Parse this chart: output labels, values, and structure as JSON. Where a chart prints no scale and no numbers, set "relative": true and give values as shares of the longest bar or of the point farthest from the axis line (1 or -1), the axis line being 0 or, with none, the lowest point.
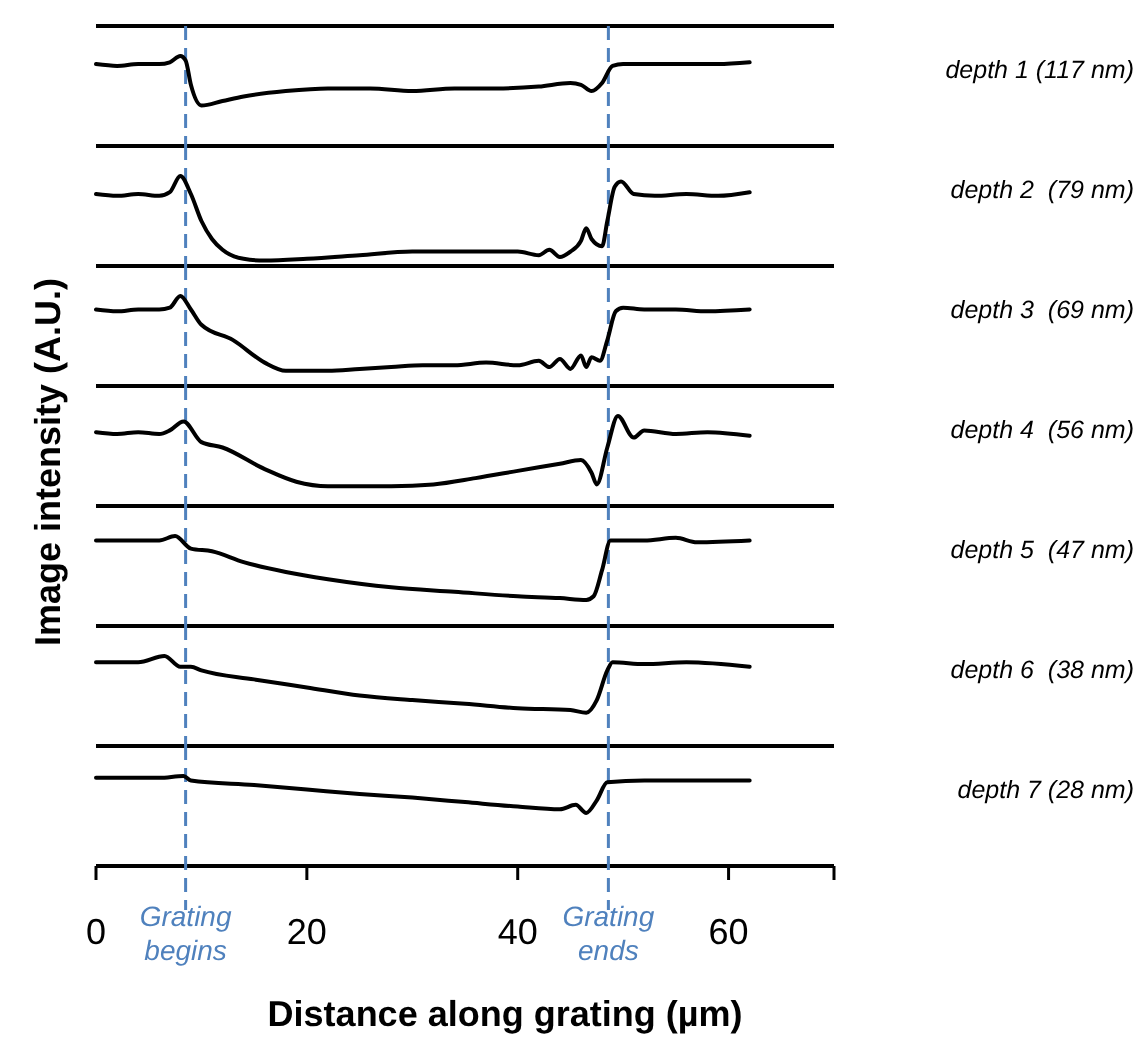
{
  "chart_data": [
    {
      "type": "line",
      "relative": true,
      "ylabel": "Image intensity (A.U.)",
      "xlim": [
        0,
        70
      ],
      "tick_labels": false,
      "series": [
        {
          "name": "depth 1 (117 nm)",
          "color": "#000000",
          "x": [
            0,
            2,
            4,
            6,
            7,
            8,
            8.5,
            9,
            10,
            12,
            14,
            18,
            22,
            26,
            30,
            34,
            38,
            42,
            45,
            46,
            47,
            48,
            49,
            50,
            53,
            56,
            59,
            62
          ],
          "values": [
            0.91,
            0.89,
            0.91,
            0.91,
            0.93,
            1,
            0.95,
            0.68,
            0.45,
            0.5,
            0.55,
            0.61,
            0.64,
            0.64,
            0.61,
            0.64,
            0.64,
            0.66,
            0.7,
            0.68,
            0.61,
            0.7,
            0.89,
            0.91,
            0.91,
            0.91,
            0.91,
            0.93
          ]
        }
      ],
      "ref_lines": [
        {
          "axis": "x",
          "value": 8.5,
          "color": "#4f81bd",
          "line_style": "dashed"
        },
        {
          "axis": "x",
          "value": 48.6,
          "color": "#4f81bd",
          "line_style": "dashed"
        }
      ]
    },
    {
      "type": "line",
      "relative": true,
      "xlim": [
        0,
        70
      ],
      "tick_labels": false,
      "series": [
        {
          "name": "depth 2  (79 nm)",
          "color": "#000000",
          "x": [
            0,
            2,
            4,
            6,
            7,
            8,
            9,
            10,
            11,
            12,
            14,
            16,
            20,
            25,
            30,
            35,
            40,
            42,
            43,
            44,
            45,
            46,
            46.5,
            47,
            48,
            48.5,
            49.2,
            49.8,
            51,
            53,
            56,
            59,
            62
          ],
          "values": [
            0.8,
            0.78,
            0.8,
            0.78,
            0.82,
            1,
            0.8,
            0.5,
            0.3,
            0.18,
            0.08,
            0.06,
            0.08,
            0.12,
            0.16,
            0.16,
            0.16,
            0.12,
            0.18,
            0.1,
            0.16,
            0.28,
            0.42,
            0.3,
            0.22,
            0.5,
            0.88,
            0.94,
            0.8,
            0.78,
            0.8,
            0.78,
            0.82
          ]
        }
      ],
      "ref_lines": [
        {
          "axis": "x",
          "value": 8.5,
          "color": "#4f81bd",
          "line_style": "dashed"
        },
        {
          "axis": "x",
          "value": 48.6,
          "color": "#4f81bd",
          "line_style": "dashed"
        }
      ]
    },
    {
      "type": "line",
      "relative": true,
      "xlim": [
        0,
        70
      ],
      "tick_labels": false,
      "series": [
        {
          "name": "depth 3  (69 nm)",
          "color": "#000000",
          "x": [
            0,
            2,
            4,
            6,
            7,
            8,
            9,
            10,
            13,
            16,
            18,
            22,
            25,
            28,
            31,
            34,
            37,
            40,
            42,
            43,
            44,
            45,
            46,
            46.5,
            47,
            47.8,
            48.5,
            49.3,
            50,
            52,
            55,
            58,
            62
          ],
          "values": [
            0.85,
            0.83,
            0.85,
            0.85,
            0.87,
            1,
            0.85,
            0.68,
            0.51,
            0.26,
            0.17,
            0.17,
            0.19,
            0.21,
            0.23,
            0.23,
            0.26,
            0.23,
            0.28,
            0.21,
            0.3,
            0.19,
            0.34,
            0.21,
            0.32,
            0.28,
            0.51,
            0.83,
            0.87,
            0.85,
            0.85,
            0.83,
            0.85
          ]
        }
      ],
      "ref_lines": [
        {
          "axis": "x",
          "value": 8.5,
          "color": "#4f81bd",
          "line_style": "dashed"
        },
        {
          "axis": "x",
          "value": 48.6,
          "color": "#4f81bd",
          "line_style": "dashed"
        }
      ]
    },
    {
      "type": "line",
      "relative": true,
      "xlim": [
        0,
        70
      ],
      "tick_labels": false,
      "series": [
        {
          "name": "depth 4  (56 nm)",
          "color": "#000000",
          "x": [
            0,
            2,
            4,
            6,
            7,
            8.3,
            10,
            12,
            16,
            19,
            22,
            28,
            32,
            36,
            40,
            44,
            46,
            47,
            47.5,
            48.5,
            49.5,
            51,
            52,
            55,
            58,
            62
          ],
          "values": [
            0.82,
            0.8,
            0.82,
            0.8,
            0.84,
            0.94,
            0.71,
            0.65,
            0.41,
            0.27,
            0.22,
            0.22,
            0.24,
            0.31,
            0.39,
            0.47,
            0.51,
            0.37,
            0.24,
            0.65,
            1,
            0.76,
            0.84,
            0.8,
            0.82,
            0.78
          ]
        }
      ],
      "ref_lines": [
        {
          "axis": "x",
          "value": 8.5,
          "color": "#4f81bd",
          "line_style": "dashed"
        },
        {
          "axis": "x",
          "value": 48.6,
          "color": "#4f81bd",
          "line_style": "dashed"
        }
      ]
    },
    {
      "type": "line",
      "relative": true,
      "xlim": [
        0,
        70
      ],
      "tick_labels": false,
      "series": [
        {
          "name": "depth 5  (47 nm)",
          "color": "#000000",
          "x": [
            0,
            2,
            4,
            6,
            7.5,
            9,
            11,
            14,
            18,
            22,
            28,
            34,
            40,
            44,
            46.5,
            47.2,
            48,
            48.8,
            52,
            55,
            57,
            62
          ],
          "values": [
            0.95,
            0.95,
            0.95,
            0.95,
            1,
            0.86,
            0.83,
            0.71,
            0.6,
            0.52,
            0.43,
            0.38,
            0.33,
            0.31,
            0.29,
            0.33,
            0.62,
            0.95,
            0.95,
            0.98,
            0.93,
            0.95
          ]
        }
      ],
      "ref_lines": [
        {
          "axis": "x",
          "value": 8.5,
          "color": "#4f81bd",
          "line_style": "dashed"
        },
        {
          "axis": "x",
          "value": 48.6,
          "color": "#4f81bd",
          "line_style": "dashed"
        }
      ]
    },
    {
      "type": "line",
      "relative": true,
      "xlim": [
        0,
        70
      ],
      "tick_labels": false,
      "series": [
        {
          "name": "depth 6  (38 nm)",
          "color": "#000000",
          "x": [
            0,
            2,
            4,
            6.5,
            8,
            9,
            10,
            15,
            20,
            25,
            30,
            35,
            40,
            45,
            46.5,
            47.5,
            48.5,
            49,
            52,
            56,
            62
          ],
          "values": [
            0.93,
            0.93,
            0.93,
            1,
            0.88,
            0.88,
            0.84,
            0.74,
            0.65,
            0.56,
            0.51,
            0.47,
            0.42,
            0.4,
            0.37,
            0.51,
            0.84,
            0.93,
            0.91,
            0.93,
            0.88
          ]
        }
      ],
      "ref_lines": [
        {
          "axis": "x",
          "value": 8.5,
          "color": "#4f81bd",
          "line_style": "dashed"
        },
        {
          "axis": "x",
          "value": 48.6,
          "color": "#4f81bd",
          "line_style": "dashed"
        }
      ]
    },
    {
      "type": "line",
      "relative": true,
      "xlabel": "Distance along grating (µm)",
      "xlim": [
        0,
        70
      ],
      "xticks": [
        0,
        20,
        40,
        60
      ],
      "tick_labels": "x",
      "series": [
        {
          "name": "depth 7 (28 nm)",
          "color": "#000000",
          "x": [
            0,
            3,
            6,
            8.3,
            9,
            15,
            20,
            25,
            30,
            35,
            40,
            44,
            45.5,
            46.5,
            47.5,
            48.5,
            52,
            56,
            62
          ],
          "values": [
            0.98,
            0.98,
            0.98,
            1,
            0.95,
            0.9,
            0.85,
            0.8,
            0.76,
            0.71,
            0.66,
            0.63,
            0.68,
            0.59,
            0.73,
            0.93,
            0.95,
            0.95,
            0.95
          ]
        }
      ],
      "ref_lines": [
        {
          "axis": "x",
          "value": 8.5,
          "label": "Grating begins",
          "color": "#4f81bd",
          "line_style": "dashed"
        },
        {
          "axis": "x",
          "value": 48.6,
          "label": "Grating ends",
          "color": "#4f81bd",
          "line_style": "dashed"
        }
      ]
    }
  ]
}
